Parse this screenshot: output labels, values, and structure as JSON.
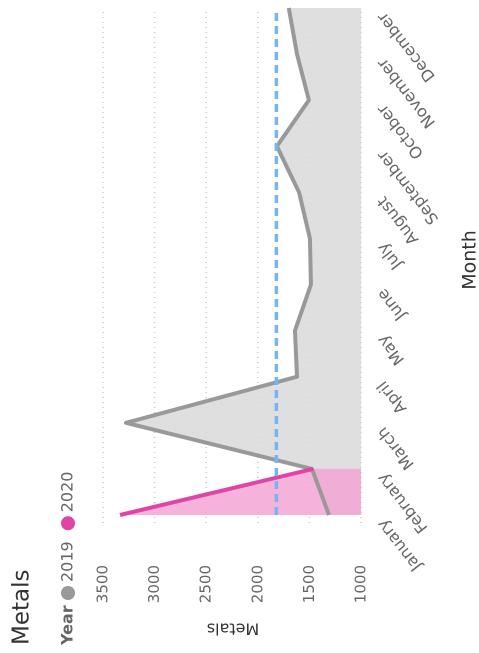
{
  "chart_data": {
    "type": "area",
    "title": "Metals",
    "legend_title": "Year",
    "x_label": "Month",
    "y_label": "Metals",
    "categories": [
      "January",
      "February",
      "March",
      "April",
      "May",
      "June",
      "July",
      "August",
      "September",
      "October",
      "November",
      "December"
    ],
    "series": [
      {
        "name": "2019",
        "color": "#999999",
        "fill": "#d9d9d9",
        "values": [
          1310,
          1475,
          3277,
          1620,
          1640,
          1485,
          1495,
          1600,
          1815,
          1505,
          1620,
          1700
        ]
      },
      {
        "name": "2020",
        "color": "#e044a7",
        "fill": "#f3a6d6",
        "values": [
          3335,
          1465,
          null,
          null,
          null,
          null,
          null,
          null,
          null,
          null,
          null,
          null
        ]
      }
    ],
    "reference_line": 1820,
    "reference_color": "#74b5f2",
    "ylim": [
      1000,
      3500
    ],
    "yticks": [
      1000,
      1500,
      2000,
      2500,
      3000,
      3500
    ],
    "grid": true
  }
}
